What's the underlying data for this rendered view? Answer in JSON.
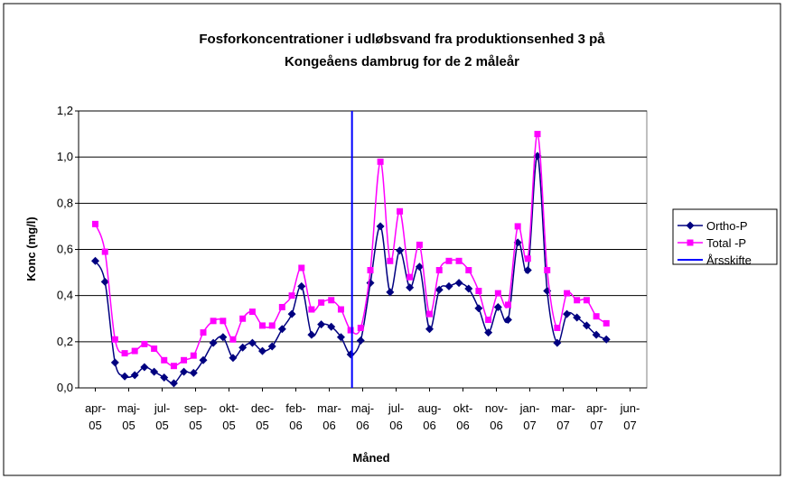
{
  "chart_data": {
    "type": "line",
    "title": "Fosforkoncentrationer i udløbsvand fra produktionsenhed  3 på",
    "subtitle": "Kongeåens dambrug for de 2 måleår",
    "ylabel": "Konc (mg/l)",
    "xlabel": "Måned",
    "ylim": [
      0,
      1.2
    ],
    "yticks": [
      {
        "value": 0,
        "label": "0,0"
      },
      {
        "value": 0.2,
        "label": "0,2"
      },
      {
        "value": 0.4,
        "label": "0,4"
      },
      {
        "value": 0.6,
        "label": "0,6"
      },
      {
        "value": 0.8,
        "label": "0,8"
      },
      {
        "value": 1.0,
        "label": "1,0"
      },
      {
        "value": 1.2,
        "label": "1,2"
      }
    ],
    "xlim": [
      -0.5,
      16.5
    ],
    "xticks": [
      {
        "value": 0,
        "label": "apr-05"
      },
      {
        "value": 1,
        "label": "maj-05"
      },
      {
        "value": 2,
        "label": "jul-05"
      },
      {
        "value": 3,
        "label": "sep-05"
      },
      {
        "value": 4,
        "label": "okt-05"
      },
      {
        "value": 5,
        "label": "dec-05"
      },
      {
        "value": 6,
        "label": "feb-06"
      },
      {
        "value": 7,
        "label": "mar-06"
      },
      {
        "value": 8,
        "label": "maj-06"
      },
      {
        "value": 9,
        "label": "jul-06"
      },
      {
        "value": 10,
        "label": "aug-06"
      },
      {
        "value": 11,
        "label": "okt-06"
      },
      {
        "value": 12,
        "label": "nov-06"
      },
      {
        "value": 13,
        "label": "jan-07"
      },
      {
        "value": 14,
        "label": "mar-07"
      },
      {
        "value": 15,
        "label": "apr-07"
      },
      {
        "value": 16,
        "label": "jun-07"
      }
    ],
    "grid": true,
    "smooth": true,
    "legend": "right",
    "x": [
      0,
      0.29,
      0.59,
      0.88,
      1.18,
      1.47,
      1.76,
      2.06,
      2.35,
      2.65,
      2.94,
      3.23,
      3.53,
      3.82,
      4.12,
      4.41,
      4.7,
      5.0,
      5.29,
      5.59,
      5.88,
      6.17,
      6.47,
      6.76,
      7.06,
      7.35,
      7.64,
      7.94,
      8.23,
      8.53,
      8.82,
      9.11,
      9.41,
      9.7,
      10.0,
      10.29,
      10.58,
      10.88,
      11.17,
      11.47,
      11.76,
      12.05,
      12.35,
      12.64,
      12.94,
      13.23,
      13.52,
      13.82,
      14.11,
      14.41,
      14.7,
      14.99,
      15.29
    ],
    "series": [
      {
        "name": "Ortho-P",
        "color": "#000080",
        "marker": "diamond",
        "values": [
          0.55,
          0.46,
          0.11,
          0.05,
          0.055,
          0.09,
          0.07,
          0.045,
          0.02,
          0.07,
          0.065,
          0.12,
          0.195,
          0.22,
          0.13,
          0.175,
          0.195,
          0.16,
          0.18,
          0.255,
          0.32,
          0.44,
          0.23,
          0.275,
          0.265,
          0.22,
          0.145,
          0.205,
          0.455,
          0.7,
          0.415,
          0.595,
          0.435,
          0.525,
          0.255,
          0.425,
          0.44,
          0.455,
          0.43,
          0.345,
          0.24,
          0.35,
          0.295,
          0.63,
          0.51,
          1.005,
          0.42,
          0.195,
          0.32,
          0.305,
          0.27,
          0.23,
          0.21
        ]
      },
      {
        "name": "Total -P",
        "color": "#ff00ff",
        "marker": "square",
        "values": [
          0.71,
          0.59,
          0.21,
          0.15,
          0.16,
          0.19,
          0.17,
          0.12,
          0.095,
          0.12,
          0.14,
          0.24,
          0.29,
          0.29,
          0.21,
          0.3,
          0.33,
          0.27,
          0.27,
          0.35,
          0.4,
          0.52,
          0.34,
          0.37,
          0.38,
          0.34,
          0.25,
          0.26,
          0.51,
          0.98,
          0.55,
          0.765,
          0.48,
          0.62,
          0.32,
          0.51,
          0.55,
          0.55,
          0.51,
          0.42,
          0.295,
          0.41,
          0.36,
          0.7,
          0.56,
          1.1,
          0.51,
          0.26,
          0.41,
          0.38,
          0.38,
          0.31,
          0.28
        ]
      },
      {
        "name": "Årsskifte",
        "color": "#0000ff",
        "x": [
          7.68,
          7.68
        ],
        "values": [
          0,
          1.2
        ]
      }
    ]
  }
}
